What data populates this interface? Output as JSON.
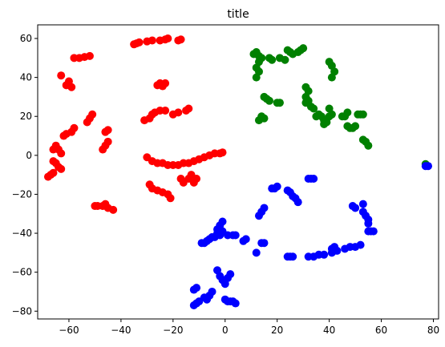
{
  "chart_data": {
    "type": "scatter",
    "title": "title",
    "xlim": [
      -72,
      82
    ],
    "ylim": [
      -84,
      67
    ],
    "xticks": [
      -60,
      -40,
      -20,
      0,
      20,
      40,
      60,
      80
    ],
    "xtick_labels": [
      "−60",
      "−40",
      "−20",
      "0",
      "20",
      "40",
      "60",
      "80"
    ],
    "yticks": [
      -80,
      -60,
      -40,
      -20,
      0,
      20,
      40,
      60
    ],
    "ytick_labels": [
      "−80",
      "−60",
      "−40",
      "−20",
      "0",
      "20",
      "40",
      "60"
    ],
    "grid": false,
    "series": [
      {
        "color": "#ff0000",
        "points": [
          [
            -35,
            57
          ],
          [
            -34,
            57.5
          ],
          [
            -33,
            58
          ],
          [
            -30,
            58.5
          ],
          [
            -28,
            59
          ],
          [
            -25,
            59
          ],
          [
            -23,
            59.5
          ],
          [
            -22,
            60
          ],
          [
            -18,
            59
          ],
          [
            -17,
            59.5
          ],
          [
            -58,
            50
          ],
          [
            -56,
            50
          ],
          [
            -54,
            50.5
          ],
          [
            -52,
            51
          ],
          [
            -63,
            41
          ],
          [
            -60,
            38
          ],
          [
            -61,
            36
          ],
          [
            -59,
            35
          ],
          [
            -26,
            36
          ],
          [
            -25,
            37
          ],
          [
            -23,
            37
          ],
          [
            -24,
            35.5
          ],
          [
            -51,
            21
          ],
          [
            -52,
            19
          ],
          [
            -53,
            17
          ],
          [
            -27,
            22
          ],
          [
            -25,
            23
          ],
          [
            -23,
            23
          ],
          [
            -20,
            21
          ],
          [
            -18,
            22
          ],
          [
            -15,
            23
          ],
          [
            -14,
            24
          ],
          [
            -31,
            18
          ],
          [
            -29,
            19
          ],
          [
            -28,
            21
          ],
          [
            -58,
            14
          ],
          [
            -59,
            12
          ],
          [
            -61,
            11
          ],
          [
            -62,
            10
          ],
          [
            -45,
            13
          ],
          [
            -46,
            12
          ],
          [
            -45,
            7
          ],
          [
            -46,
            5
          ],
          [
            -47,
            3
          ],
          [
            -66,
            3
          ],
          [
            -65,
            5
          ],
          [
            -64,
            3
          ],
          [
            -63,
            1
          ],
          [
            -66,
            -3
          ],
          [
            -65,
            -4
          ],
          [
            -64,
            -6
          ],
          [
            -63,
            -7
          ],
          [
            -68,
            -11
          ],
          [
            -67,
            -10
          ],
          [
            -66,
            -9
          ],
          [
            -30,
            -1
          ],
          [
            -28,
            -3
          ],
          [
            -26,
            -4
          ],
          [
            -24,
            -4
          ],
          [
            -22,
            -5
          ],
          [
            -20,
            -5
          ],
          [
            -18,
            -5
          ],
          [
            -16,
            -4
          ],
          [
            -14,
            -4
          ],
          [
            -12,
            -3
          ],
          [
            -10,
            -2
          ],
          [
            -8,
            -1
          ],
          [
            -6,
            0
          ],
          [
            -4,
            1
          ],
          [
            -2,
            1
          ],
          [
            -1,
            1.5
          ],
          [
            -17,
            -12
          ],
          [
            -16,
            -14
          ],
          [
            -14,
            -12
          ],
          [
            -13,
            -10
          ],
          [
            -11,
            -12
          ],
          [
            -12,
            -14
          ],
          [
            -29,
            -15
          ],
          [
            -28,
            -17
          ],
          [
            -26,
            -18
          ],
          [
            -24,
            -19
          ],
          [
            -22,
            -20
          ],
          [
            -21,
            -22
          ],
          [
            -50,
            -26
          ],
          [
            -49,
            -26
          ],
          [
            -47,
            -26
          ],
          [
            -46,
            -25
          ],
          [
            -45,
            -27
          ],
          [
            -43,
            -28
          ]
        ]
      },
      {
        "color": "#008000",
        "points": [
          [
            11,
            52
          ],
          [
            12,
            53
          ],
          [
            13,
            51
          ],
          [
            14,
            50
          ],
          [
            17,
            50
          ],
          [
            18,
            49
          ],
          [
            24,
            54
          ],
          [
            25,
            53
          ],
          [
            26,
            52
          ],
          [
            28,
            53
          ],
          [
            29,
            54
          ],
          [
            30,
            55
          ],
          [
            21,
            50
          ],
          [
            23,
            49
          ],
          [
            13,
            48
          ],
          [
            12,
            45
          ],
          [
            13,
            43
          ],
          [
            12,
            40
          ],
          [
            15,
            30
          ],
          [
            16,
            29
          ],
          [
            17,
            28
          ],
          [
            20,
            27
          ],
          [
            21,
            27
          ],
          [
            14,
            20
          ],
          [
            15,
            19
          ],
          [
            13,
            18
          ],
          [
            31,
            35
          ],
          [
            32,
            33
          ],
          [
            31,
            30
          ],
          [
            32,
            28
          ],
          [
            31,
            27
          ],
          [
            33,
            25
          ],
          [
            34,
            24
          ],
          [
            36,
            21
          ],
          [
            35,
            20
          ],
          [
            37,
            20
          ],
          [
            38,
            18
          ],
          [
            39,
            17
          ],
          [
            38,
            16
          ],
          [
            40,
            48
          ],
          [
            41,
            46
          ],
          [
            42,
            43
          ],
          [
            41,
            40
          ],
          [
            40,
            24
          ],
          [
            41,
            21
          ],
          [
            40,
            20
          ],
          [
            47,
            22
          ],
          [
            46,
            20
          ],
          [
            45,
            20
          ],
          [
            47,
            15
          ],
          [
            48,
            14
          ],
          [
            49,
            14
          ],
          [
            50,
            15
          ],
          [
            51,
            21
          ],
          [
            52,
            21
          ],
          [
            53,
            21
          ],
          [
            53,
            8
          ],
          [
            54,
            7
          ],
          [
            55,
            5
          ],
          [
            77,
            -4.5
          ]
        ]
      },
      {
        "color": "#0000ff",
        "points": [
          [
            77,
            -5.5
          ],
          [
            78,
            -5.5
          ],
          [
            18,
            -17
          ],
          [
            19,
            -17
          ],
          [
            20,
            -16
          ],
          [
            15,
            -27
          ],
          [
            14,
            -29
          ],
          [
            13,
            -31
          ],
          [
            24,
            -18
          ],
          [
            25,
            -19
          ],
          [
            26,
            -21
          ],
          [
            27,
            -22
          ],
          [
            28,
            -24
          ],
          [
            32,
            -12
          ],
          [
            33,
            -12
          ],
          [
            34,
            -12
          ],
          [
            49,
            -26
          ],
          [
            50,
            -27
          ],
          [
            53,
            -25
          ],
          [
            53,
            -29
          ],
          [
            54,
            -31
          ],
          [
            55,
            -33
          ],
          [
            55,
            -35
          ],
          [
            55,
            -39
          ],
          [
            56,
            -39
          ],
          [
            57,
            -39
          ],
          [
            -1,
            -34
          ],
          [
            -2,
            -36
          ],
          [
            -3,
            -38
          ],
          [
            -1,
            -39
          ],
          [
            1,
            -41
          ],
          [
            3,
            -41
          ],
          [
            4,
            -41
          ],
          [
            7,
            -44
          ],
          [
            8,
            -43
          ],
          [
            -9,
            -45
          ],
          [
            -8,
            -45
          ],
          [
            -7,
            -44
          ],
          [
            -6,
            -43
          ],
          [
            -5,
            -42
          ],
          [
            -4,
            -42
          ],
          [
            -3,
            -40
          ],
          [
            -2,
            -41
          ],
          [
            14,
            -45
          ],
          [
            15,
            -45
          ],
          [
            12,
            -50
          ],
          [
            24,
            -52
          ],
          [
            25,
            -52
          ],
          [
            26,
            -52
          ],
          [
            32,
            -52
          ],
          [
            34,
            -52
          ],
          [
            36,
            -51
          ],
          [
            38,
            -51
          ],
          [
            41,
            -50
          ],
          [
            43,
            -49
          ],
          [
            46,
            -48
          ],
          [
            48,
            -47
          ],
          [
            50,
            -47
          ],
          [
            52,
            -46
          ],
          [
            41,
            -48
          ],
          [
            42,
            -47
          ],
          [
            -11,
            -68
          ],
          [
            -12,
            -69
          ],
          [
            -3,
            -59
          ],
          [
            -2,
            -62
          ],
          [
            -1,
            -64
          ],
          [
            0,
            -66
          ],
          [
            1,
            -63
          ],
          [
            2,
            -61
          ],
          [
            -5,
            -70
          ],
          [
            -6,
            -72
          ],
          [
            -7,
            -74
          ],
          [
            -8,
            -73
          ],
          [
            0,
            -74
          ],
          [
            1,
            -75
          ],
          [
            2,
            -75
          ],
          [
            3,
            -75
          ],
          [
            4,
            -76
          ],
          [
            -11,
            -76
          ],
          [
            -12,
            -77
          ],
          [
            -10,
            -75
          ]
        ]
      }
    ]
  }
}
